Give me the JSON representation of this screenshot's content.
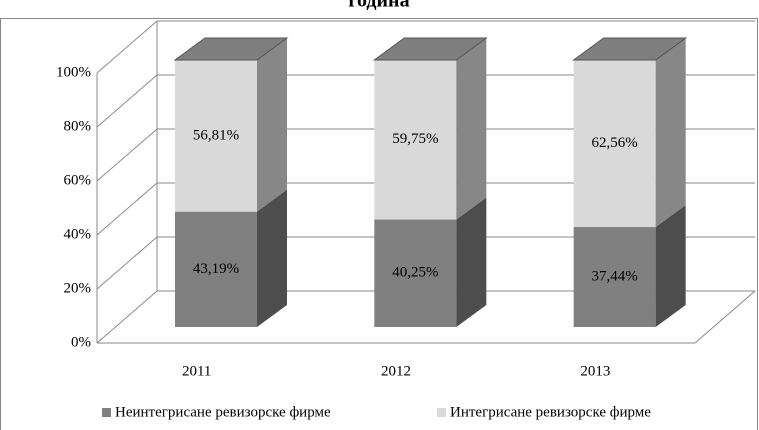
{
  "chart_data": {
    "type": "bar3d_stacked",
    "title": "година",
    "categories": [
      "2011",
      "2012",
      "2013"
    ],
    "series": [
      {
        "name": "Неинтегрисане ревизорске фирме",
        "color": "#808080",
        "values": [
          43.19,
          40.25,
          37.44
        ],
        "value_labels": [
          "43,19%",
          "40,25%",
          "37,44%"
        ]
      },
      {
        "name": "Интегрисане ревизорске фирме",
        "color": "#d9d9d9",
        "values": [
          56.81,
          59.75,
          62.56
        ],
        "value_labels": [
          "56,81%",
          "59,75%",
          "62,56%"
        ]
      }
    ],
    "ylim": [
      0,
      100
    ],
    "yticks": [
      {
        "value": 0,
        "label": "0%"
      },
      {
        "value": 20,
        "label": "20%"
      },
      {
        "value": 40,
        "label": "40%"
      },
      {
        "value": 60,
        "label": "60%"
      },
      {
        "value": 80,
        "label": "80%"
      },
      {
        "value": 100,
        "label": "100%"
      }
    ],
    "grid": true,
    "legend": "bottom"
  }
}
